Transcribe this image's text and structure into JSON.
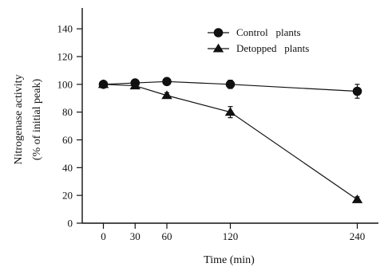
{
  "chart_data": {
    "type": "line",
    "xlabel": "Time (min)",
    "ylabel_line1": "Nitrogenase activity",
    "ylabel_line2": "(% of initial peak)",
    "x": [
      0,
      30,
      60,
      120,
      240
    ],
    "x_ticks": [
      "0",
      "30",
      "60",
      "120",
      "240"
    ],
    "y_ticks": [
      "0",
      "20",
      "40",
      "60",
      "80",
      "100",
      "120",
      "140"
    ],
    "xlim": [
      -20,
      260
    ],
    "ylim": [
      0,
      155
    ],
    "grid": false,
    "legend_position": "top-center",
    "series": [
      {
        "name": "Control   plants",
        "marker": "circle",
        "values": [
          100,
          101,
          102,
          100,
          95
        ],
        "errors": [
          0,
          2,
          2,
          3,
          5
        ]
      },
      {
        "name": "Detopped   plants",
        "marker": "triangle",
        "values": [
          100,
          99,
          92,
          80,
          17
        ],
        "errors": [
          0,
          1,
          2,
          4,
          2
        ]
      }
    ]
  }
}
